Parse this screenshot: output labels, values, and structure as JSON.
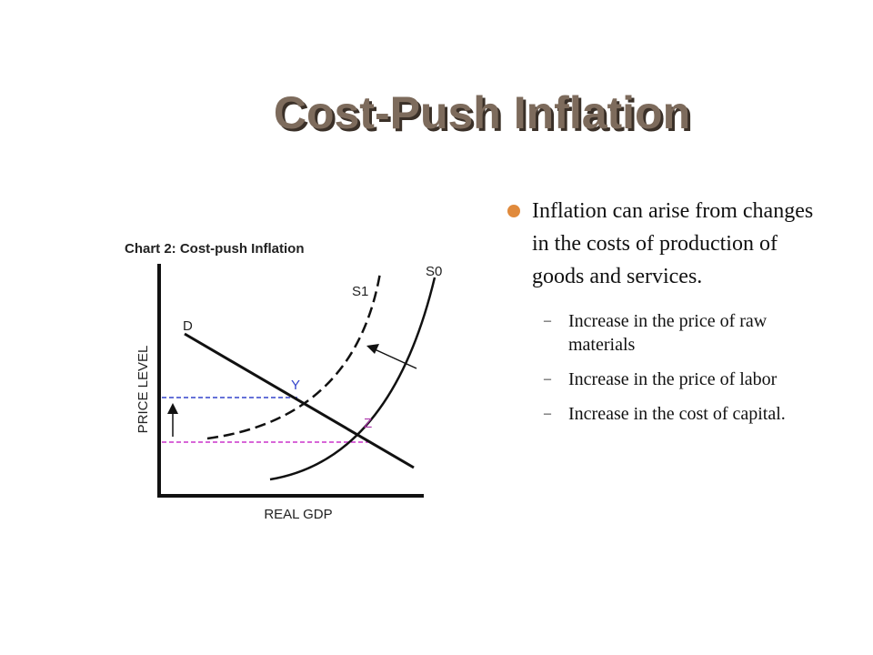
{
  "title": "Cost-Push Inflation",
  "figure": {
    "title": "Chart 2: Cost-push Inflation",
    "y_label": "PRICE LEVEL",
    "x_label": "REAL GDP",
    "labels": {
      "d": "D",
      "s0": "S0",
      "s1": "S1",
      "y": "Y",
      "z": "Z"
    }
  },
  "bullets": [
    {
      "text": "Inflation can arise from changes in the costs of production of goods and services.",
      "sub": [
        "Increase in the price of raw materials",
        "Increase in the price of labor",
        "Increase in the cost of capital."
      ]
    }
  ]
}
